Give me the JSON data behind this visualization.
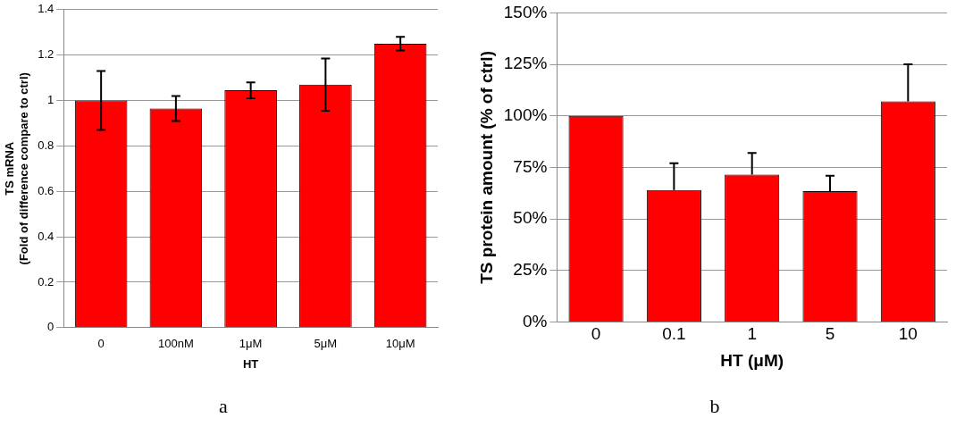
{
  "chart_data": [
    {
      "type": "bar",
      "categories": [
        "0",
        "100nM",
        "1μM",
        "5μM",
        "10μM"
      ],
      "values": [
        1.0,
        0.965,
        1.045,
        1.07,
        1.25
      ],
      "errors": [
        0.13,
        0.055,
        0.035,
        0.115,
        0.03
      ],
      "color": "#ff0000",
      "ylim": [
        0,
        1.4
      ],
      "yticks": [
        0,
        0.2,
        0.4,
        0.6,
        0.8,
        1,
        1.2,
        1.4
      ],
      "grid": "y",
      "xlabel": "HT",
      "ylabel": "TS mRNA\n(Fold of difference compare to ctrl)",
      "annotations": [
        "a"
      ]
    },
    {
      "type": "bar",
      "categories": [
        "0",
        "0.1",
        "1",
        "5",
        "10"
      ],
      "values": [
        100,
        64,
        71.5,
        63.5,
        107
      ],
      "errors": [
        null,
        [
          64,
          77
        ],
        [
          71.5,
          82
        ],
        [
          63.5,
          71
        ],
        [
          107,
          125
        ]
      ],
      "color": "#ff0000",
      "ylim": [
        0,
        150
      ],
      "yticks": [
        {
          "value": 0,
          "label": "0%"
        },
        {
          "value": 25,
          "label": "25%"
        },
        {
          "value": 50,
          "label": "50%"
        },
        {
          "value": 75,
          "label": "75%"
        },
        {
          "value": 100,
          "label": "100%"
        },
        {
          "value": 125,
          "label": "125%"
        },
        {
          "value": 150,
          "label": "150%"
        }
      ],
      "grid": "y",
      "xlabel": "HT (μM)",
      "ylabel": "TS protein amount (% of ctrl)",
      "annotations": [
        "b"
      ]
    }
  ]
}
